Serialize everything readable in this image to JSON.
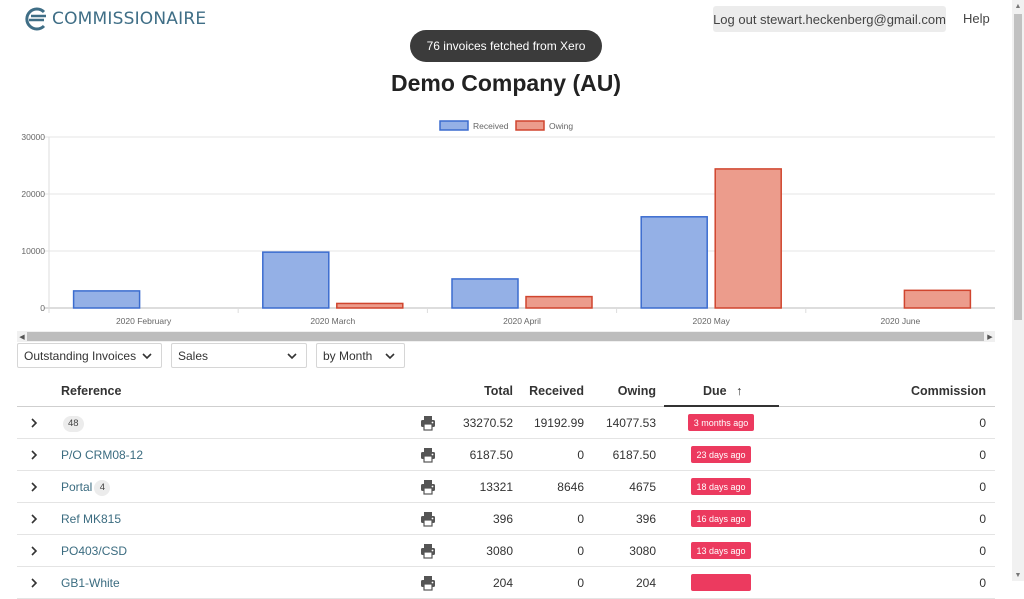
{
  "header": {
    "brand": "COMMISSIONAIRE",
    "logout_label": "Log out stewart.heckenberg@gmail.com",
    "help_label": "Help"
  },
  "toast": "76 invoices fetched from Xero",
  "title": "Demo Company (AU)",
  "chart_data": {
    "type": "bar",
    "categories": [
      "2020 February",
      "2020 March",
      "2020 April",
      "2020 May",
      "2020 June"
    ],
    "series": [
      {
        "name": "Received",
        "values": [
          3000,
          9800,
          5100,
          16000,
          0
        ],
        "fill": "#94b0e6",
        "stroke": "#3b6ccf"
      },
      {
        "name": "Owing",
        "values": [
          0,
          800,
          2000,
          24400,
          3100
        ],
        "fill": "#ec9c8c",
        "stroke": "#d0452e"
      }
    ],
    "ylim": [
      0,
      30000
    ],
    "yticks": [
      "0",
      "10000",
      "20000",
      "30000"
    ],
    "legend": "top-center",
    "grid": true
  },
  "filters": {
    "view": "Outstanding Invoices",
    "type": "Sales",
    "period": "by Month"
  },
  "table": {
    "headers": {
      "reference": "Reference",
      "total": "Total",
      "received": "Received",
      "owing": "Owing",
      "due": "Due",
      "due_sort": "↑",
      "commission": "Commission"
    },
    "rows": [
      {
        "reference": "",
        "count": "48",
        "total": "33270.52",
        "received": "19192.99",
        "owing": "14077.53",
        "due": "3 months ago",
        "commission": "0"
      },
      {
        "reference": "P/O CRM08-12",
        "count": "",
        "total": "6187.50",
        "received": "0",
        "owing": "6187.50",
        "due": "23 days ago",
        "commission": "0"
      },
      {
        "reference": "Portal",
        "count": "4",
        "total": "13321",
        "received": "8646",
        "owing": "4675",
        "due": "18 days ago",
        "commission": "0"
      },
      {
        "reference": "Ref MK815",
        "count": "",
        "total": "396",
        "received": "0",
        "owing": "396",
        "due": "16 days ago",
        "commission": "0"
      },
      {
        "reference": "PO403/CSD",
        "count": "",
        "total": "3080",
        "received": "0",
        "owing": "3080",
        "due": "13 days ago",
        "commission": "0"
      },
      {
        "reference": "GB1-White",
        "count": "",
        "total": "204",
        "received": "0",
        "owing": "204",
        "due": "",
        "commission": "0"
      }
    ]
  },
  "colors": {
    "brand": "#3f6e86",
    "due_badge": "#ec3a5f",
    "reference_link": "#3b6c80"
  },
  "icons": {
    "logo": "commissionaire-logo-icon",
    "print": "printer-icon",
    "expand": "chevron-right-icon",
    "select": "chevron-down-icon"
  }
}
